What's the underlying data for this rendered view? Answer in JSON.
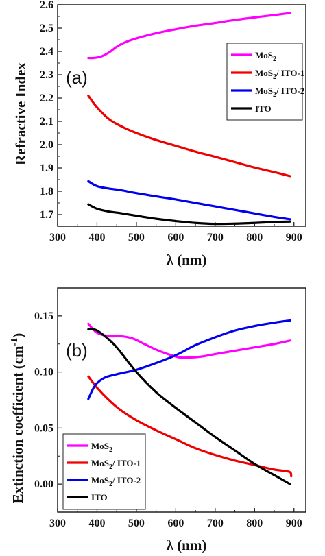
{
  "chart_data": [
    {
      "type": "line",
      "panel_label": "(a)",
      "xlabel": "λ (nm)",
      "ylabel": "Refractive Index",
      "xlim": [
        300,
        930
      ],
      "ylim": [
        1.65,
        2.6
      ],
      "xticks": [
        300,
        400,
        500,
        600,
        700,
        800,
        900
      ],
      "yticks": [
        1.7,
        1.8,
        1.9,
        2.0,
        2.1,
        2.2,
        2.3,
        2.4,
        2.5,
        2.6
      ],
      "ytick_decimals": 1,
      "legend_position": "right",
      "series": [
        {
          "name": "MoS2",
          "label_main": "MoS",
          "label_sub": "2",
          "label_tail": "",
          "color": "#ff00ff",
          "x": [
            378,
            390,
            410,
            430,
            450,
            470,
            500,
            550,
            600,
            650,
            700,
            750,
            800,
            850,
            890
          ],
          "y": [
            2.372,
            2.372,
            2.378,
            2.395,
            2.42,
            2.438,
            2.456,
            2.478,
            2.495,
            2.51,
            2.522,
            2.535,
            2.546,
            2.556,
            2.565
          ]
        },
        {
          "name": "MoS2/ ITO-1",
          "label_main": "MoS",
          "label_sub": "2",
          "label_tail": "/ ITO-1",
          "color": "#ee0000",
          "x": [
            378,
            400,
            430,
            460,
            500,
            550,
            600,
            650,
            700,
            750,
            800,
            850,
            890
          ],
          "y": [
            2.21,
            2.16,
            2.11,
            2.08,
            2.05,
            2.02,
            1.995,
            1.97,
            1.948,
            1.925,
            1.902,
            1.882,
            1.865
          ]
        },
        {
          "name": "MoS2/ ITO-2",
          "label_main": "MoS",
          "label_sub": "2",
          "label_tail": "/ ITO-2",
          "color": "#0000ee",
          "x": [
            378,
            400,
            430,
            460,
            500,
            550,
            600,
            650,
            700,
            750,
            800,
            850,
            890
          ],
          "y": [
            1.843,
            1.822,
            1.812,
            1.805,
            1.792,
            1.778,
            1.765,
            1.75,
            1.735,
            1.72,
            1.705,
            1.69,
            1.68
          ]
        },
        {
          "name": "ITO",
          "label_main": "ITO",
          "label_sub": "",
          "label_tail": "",
          "color": "#000000",
          "x": [
            378,
            400,
            430,
            460,
            500,
            550,
            600,
            650,
            700,
            750,
            800,
            850,
            890
          ],
          "y": [
            1.744,
            1.725,
            1.713,
            1.706,
            1.695,
            1.682,
            1.672,
            1.664,
            1.66,
            1.661,
            1.664,
            1.668,
            1.67
          ]
        }
      ]
    },
    {
      "type": "line",
      "panel_label": "(b)",
      "xlabel": "λ (nm)",
      "ylabel_main": "Extinction coefficient (cm",
      "ylabel_sup": "-1",
      "ylabel_tail": ")",
      "xlim": [
        300,
        930
      ],
      "ylim": [
        -0.025,
        0.175
      ],
      "xticks": [
        300,
        400,
        500,
        600,
        700,
        800,
        900
      ],
      "yticks": [
        0.0,
        0.05,
        0.1,
        0.15
      ],
      "ytick_decimals": 2,
      "legend_position": "bottom-left",
      "series": [
        {
          "name": "MoS2",
          "label_main": "MoS",
          "label_sub": "2",
          "label_tail": "",
          "color": "#ff00ff",
          "x": [
            378,
            400,
            430,
            460,
            490,
            520,
            550,
            580,
            610,
            640,
            670,
            700,
            750,
            800,
            850,
            890
          ],
          "y": [
            0.143,
            0.135,
            0.132,
            0.132,
            0.13,
            0.125,
            0.12,
            0.116,
            0.113,
            0.113,
            0.114,
            0.116,
            0.119,
            0.122,
            0.125,
            0.128
          ]
        },
        {
          "name": "MoS2/ ITO-1",
          "label_main": "MoS",
          "label_sub": "2",
          "label_tail": "/ ITO-1",
          "color": "#ee0000",
          "x": [
            378,
            400,
            430,
            460,
            500,
            550,
            600,
            650,
            700,
            750,
            800,
            850,
            888,
            893
          ],
          "y": [
            0.096,
            0.086,
            0.075,
            0.066,
            0.057,
            0.048,
            0.04,
            0.032,
            0.026,
            0.021,
            0.017,
            0.013,
            0.011,
            0.007
          ]
        },
        {
          "name": "MoS2/ ITO-2",
          "label_main": "MoS",
          "label_sub": "2",
          "label_tail": "/ ITO-2",
          "color": "#0000ee",
          "x": [
            378,
            390,
            400,
            420,
            450,
            500,
            550,
            600,
            650,
            700,
            750,
            800,
            850,
            890
          ],
          "y": [
            0.076,
            0.085,
            0.09,
            0.095,
            0.098,
            0.102,
            0.108,
            0.115,
            0.124,
            0.131,
            0.137,
            0.141,
            0.144,
            0.146
          ]
        },
        {
          "name": "ITO",
          "label_main": "ITO",
          "label_sub": "",
          "label_tail": "",
          "color": "#000000",
          "x": [
            378,
            390,
            400,
            420,
            450,
            500,
            550,
            600,
            650,
            700,
            750,
            800,
            850,
            890
          ],
          "y": [
            0.138,
            0.138,
            0.137,
            0.132,
            0.122,
            0.1,
            0.082,
            0.068,
            0.055,
            0.042,
            0.03,
            0.018,
            0.008,
            0.0
          ]
        }
      ]
    }
  ]
}
